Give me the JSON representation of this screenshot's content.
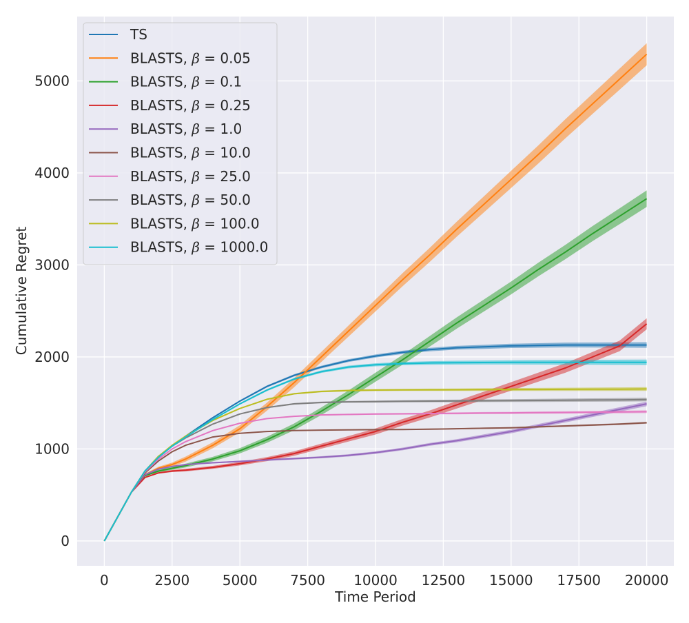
{
  "chart_data": {
    "type": "line",
    "title": "",
    "xlabel": "Time Period",
    "ylabel": "Cumulative Regret",
    "xlim": [
      -1000,
      21000
    ],
    "ylim": [
      -270,
      5700
    ],
    "xticks": [
      0,
      2500,
      5000,
      7500,
      10000,
      12500,
      15000,
      17500,
      20000
    ],
    "xtick_labels": [
      "0",
      "2500",
      "5000",
      "7500",
      "10000",
      "12500",
      "15000",
      "17500",
      "20000"
    ],
    "yticks": [
      0,
      1000,
      2000,
      3000,
      4000,
      5000
    ],
    "ytick_labels": [
      "0",
      "1000",
      "2000",
      "3000",
      "4000",
      "5000"
    ],
    "grid": true,
    "legend_position": "top-left",
    "x": [
      0,
      1000,
      1500,
      2000,
      2500,
      3000,
      4000,
      5000,
      6000,
      7000,
      8000,
      9000,
      10000,
      11000,
      12000,
      13000,
      14000,
      15000,
      16000,
      17000,
      18000,
      19000,
      20000
    ],
    "series": [
      {
        "name": "TS",
        "prefix": "TS",
        "beta": "",
        "color": "#1f77b4",
        "band": 30,
        "values": [
          0,
          530,
          760,
          910,
          1030,
          1140,
          1340,
          1520,
          1680,
          1800,
          1890,
          1960,
          2010,
          2050,
          2080,
          2100,
          2110,
          2120,
          2125,
          2130,
          2130,
          2130,
          2130
        ]
      },
      {
        "name": "BLASTS, β = 0.05",
        "prefix": "BLASTS, ",
        "beta": "0.05",
        "color": "#ff7f0e",
        "band": 120,
        "values": [
          0,
          530,
          720,
          790,
          830,
          890,
          1040,
          1220,
          1460,
          1720,
          2000,
          2280,
          2560,
          2840,
          3110,
          3390,
          3660,
          3930,
          4200,
          4480,
          4750,
          5020,
          5290
        ]
      },
      {
        "name": "BLASTS, β = 0.1",
        "prefix": "BLASTS, ",
        "beta": "0.1",
        "color": "#2ca02c",
        "band": 90,
        "values": [
          0,
          530,
          710,
          760,
          790,
          820,
          890,
          980,
          1100,
          1240,
          1410,
          1590,
          1780,
          1970,
          2170,
          2370,
          2560,
          2750,
          2950,
          3140,
          3340,
          3530,
          3720
        ]
      },
      {
        "name": "BLASTS, β = 0.25",
        "prefix": "BLASTS, ",
        "beta": "0.25",
        "color": "#d62728",
        "band": 60,
        "values": [
          0,
          530,
          690,
          740,
          760,
          770,
          800,
          840,
          890,
          950,
          1030,
          1110,
          1190,
          1290,
          1380,
          1480,
          1580,
          1680,
          1780,
          1880,
          2000,
          2120,
          2360
        ]
      },
      {
        "name": "BLASTS, β = 1.0",
        "prefix": "BLASTS, ",
        "beta": "1.0",
        "color": "#9467bd",
        "band": 25,
        "values": [
          0,
          530,
          720,
          780,
          810,
          830,
          850,
          865,
          880,
          895,
          910,
          930,
          960,
          1000,
          1050,
          1090,
          1140,
          1190,
          1250,
          1310,
          1370,
          1430,
          1490
        ]
      },
      {
        "name": "BLASTS, β = 10.0",
        "prefix": "BLASTS, ",
        "beta": "10.0",
        "color": "#8c564b",
        "band": 10,
        "values": [
          0,
          530,
          740,
          870,
          970,
          1040,
          1130,
          1170,
          1190,
          1200,
          1205,
          1207,
          1210,
          1212,
          1215,
          1220,
          1225,
          1230,
          1240,
          1250,
          1260,
          1270,
          1285
        ]
      },
      {
        "name": "BLASTS, β = 25.0",
        "prefix": "BLASTS, ",
        "beta": "25.0",
        "color": "#e377c2",
        "band": 15,
        "values": [
          0,
          530,
          750,
          890,
          1000,
          1080,
          1200,
          1280,
          1330,
          1355,
          1370,
          1375,
          1380,
          1382,
          1385,
          1387,
          1390,
          1392,
          1395,
          1397,
          1400,
          1402,
          1405
        ]
      },
      {
        "name": "BLASTS, β = 50.0",
        "prefix": "BLASTS, ",
        "beta": "50.0",
        "color": "#7f7f7f",
        "band": 20,
        "values": [
          0,
          530,
          760,
          920,
          1030,
          1120,
          1270,
          1380,
          1450,
          1490,
          1505,
          1512,
          1515,
          1518,
          1520,
          1522,
          1524,
          1526,
          1528,
          1530,
          1532,
          1534,
          1537
        ]
      },
      {
        "name": "BLASTS, β = 100.0",
        "prefix": "BLASTS, ",
        "beta": "100.0",
        "color": "#bcbd22",
        "band": 20,
        "values": [
          0,
          530,
          760,
          920,
          1040,
          1140,
          1310,
          1440,
          1540,
          1600,
          1625,
          1635,
          1640,
          1642,
          1643,
          1644,
          1645,
          1646,
          1647,
          1648,
          1649,
          1650,
          1652
        ]
      },
      {
        "name": "BLASTS, β = 1000.0",
        "prefix": "BLASTS, ",
        "beta": "1000.0",
        "color": "#17becf",
        "band": 30,
        "values": [
          0,
          530,
          760,
          910,
          1030,
          1130,
          1320,
          1490,
          1640,
          1760,
          1840,
          1890,
          1915,
          1928,
          1935,
          1938,
          1940,
          1941,
          1942,
          1942,
          1942,
          1942,
          1942
        ]
      }
    ]
  }
}
